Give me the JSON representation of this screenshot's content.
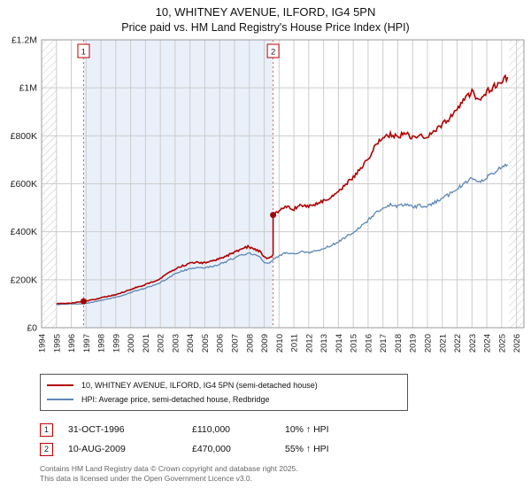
{
  "title": "10, WHITNEY AVENUE, ILFORD, IG4 5PN",
  "subtitle": "Price paid vs. HM Land Registry's House Price Index (HPI)",
  "chart_data": {
    "type": "line",
    "x_range": [
      1994,
      2026.5
    ],
    "ylim": [
      0,
      1200000
    ],
    "grid": true,
    "y_ticks": [
      {
        "v": 0,
        "label": "£0"
      },
      {
        "v": 200000,
        "label": "£200K"
      },
      {
        "v": 400000,
        "label": "£400K"
      },
      {
        "v": 600000,
        "label": "£600K"
      },
      {
        "v": 800000,
        "label": "£800K"
      },
      {
        "v": 1000000,
        "label": "£1M"
      },
      {
        "v": 1200000,
        "label": "£1.2M"
      }
    ],
    "x_ticks": [
      1994,
      1995,
      1996,
      1997,
      1998,
      1999,
      2000,
      2001,
      2002,
      2003,
      2004,
      2005,
      2006,
      2007,
      2008,
      2009,
      2010,
      2011,
      2012,
      2013,
      2014,
      2015,
      2016,
      2017,
      2018,
      2019,
      2020,
      2021,
      2022,
      2023,
      2024,
      2025,
      2026
    ],
    "hatch_regions": [
      [
        1994,
        1995.05
      ],
      [
        2025.5,
        2026.5
      ]
    ],
    "shaded_region": [
      1996.83,
      2009.6
    ],
    "colors": {
      "property": "#b00000",
      "hpi": "#5c87b5",
      "marker": "#a00000",
      "sale_line": "#d06060",
      "shade": "#e9f0fa",
      "grid": "#cccccc",
      "hatch": "#c4c4c4",
      "border": "#999999"
    },
    "series": [
      {
        "name": "10, WHITNEY AVENUE, ILFORD, IG4 5PN (semi-detached house)",
        "color": "#b00000",
        "x": [
          1995.0,
          1995.5,
          1996.0,
          1996.83,
          1997.5,
          1998,
          1998.5,
          1999,
          1999.5,
          2000,
          2000.5,
          2001,
          2001.5,
          2002,
          2002.5,
          2003,
          2003.5,
          2004,
          2004.5,
          2005,
          2005.5,
          2006,
          2006.5,
          2007,
          2007.5,
          2007.9,
          2008.3,
          2008.7,
          2009.1,
          2009.4,
          2009.6,
          2009.6,
          2010,
          2010.5,
          2011,
          2011.5,
          2012,
          2012.5,
          2013,
          2013.5,
          2014,
          2014.5,
          2015,
          2015.5,
          2016,
          2016.5,
          2017,
          2017.5,
          2018,
          2018.5,
          2019,
          2019.5,
          2020,
          2020.5,
          2021,
          2021.5,
          2022,
          2022.5,
          2023,
          2023.5,
          2024,
          2024.5,
          2025,
          2025.4
        ],
        "values": [
          100000,
          101000,
          103000,
          110000,
          117000,
          125000,
          131000,
          138000,
          148000,
          160000,
          170000,
          180000,
          192000,
          205000,
          225000,
          245000,
          258000,
          268000,
          272000,
          270000,
          278000,
          288000,
          300000,
          315000,
          328000,
          338000,
          330000,
          318000,
          290000,
          296000,
          303000,
          470000,
          488000,
          505000,
          495000,
          512000,
          505000,
          518000,
          528000,
          545000,
          565000,
          598000,
          628000,
          660000,
          705000,
          760000,
          790000,
          805000,
          795000,
          812000,
          792000,
          800000,
          795000,
          822000,
          848000,
          872000,
          908000,
          950000,
          985000,
          945000,
          985000,
          1005000,
          1030000,
          1045000
        ]
      },
      {
        "name": "HPI: Average price, semi-detached house, Redbridge",
        "color": "#5c87b5",
        "x": [
          1995.0,
          1995.5,
          1996.0,
          1996.83,
          1997.5,
          1998,
          1998.5,
          1999,
          1999.5,
          2000,
          2000.5,
          2001,
          2001.5,
          2002,
          2002.5,
          2003,
          2003.5,
          2004,
          2004.5,
          2005,
          2005.5,
          2006,
          2006.5,
          2007,
          2007.5,
          2007.9,
          2008.3,
          2008.7,
          2009.1,
          2009.4,
          2010,
          2010.5,
          2011,
          2011.5,
          2012,
          2012.5,
          2013,
          2013.5,
          2014,
          2014.5,
          2015,
          2015.5,
          2016,
          2016.5,
          2017,
          2017.5,
          2018,
          2018.5,
          2019,
          2019.5,
          2020,
          2020.5,
          2021,
          2021.5,
          2022,
          2022.5,
          2023,
          2023.5,
          2024,
          2024.5,
          2025,
          2025.4
        ],
        "values": [
          96000,
          97500,
          99000,
          100000,
          107000,
          114000,
          120000,
          127000,
          136000,
          147000,
          156000,
          165000,
          176000,
          188000,
          206000,
          225000,
          237000,
          247000,
          251000,
          249000,
          256000,
          265000,
          277000,
          291000,
          303000,
          312000,
          305000,
          294000,
          268000,
          274000,
          300000,
          315000,
          308000,
          318000,
          312000,
          320000,
          330000,
          342000,
          358000,
          378000,
          398000,
          420000,
          448000,
          478000,
          498000,
          512000,
          505000,
          516000,
          502000,
          510000,
          505000,
          522000,
          540000,
          556000,
          580000,
          602000,
          622000,
          605000,
          628000,
          648000,
          668000,
          680000
        ]
      }
    ],
    "markers": [
      {
        "n": "1",
        "x": 1996.83,
        "y": 110000
      },
      {
        "n": "2",
        "x": 2009.6,
        "y": 470000
      }
    ]
  },
  "legend": {
    "items": [
      {
        "label": "10, WHITNEY AVENUE, ILFORD, IG4 5PN (semi-detached house)",
        "color": "#b00000"
      },
      {
        "label": "HPI: Average price, semi-detached house, Redbridge",
        "color": "#5c87b5"
      }
    ]
  },
  "annotations": [
    {
      "num": "1",
      "date": "31-OCT-1996",
      "price": "£110,000",
      "hpi": "10% ↑ HPI"
    },
    {
      "num": "2",
      "date": "10-AUG-2009",
      "price": "£470,000",
      "hpi": "55% ↑ HPI"
    }
  ],
  "footer": {
    "line1": "Contains HM Land Registry data © Crown copyright and database right 2025.",
    "line2": "This data is licensed under the Open Government Licence v3.0."
  }
}
